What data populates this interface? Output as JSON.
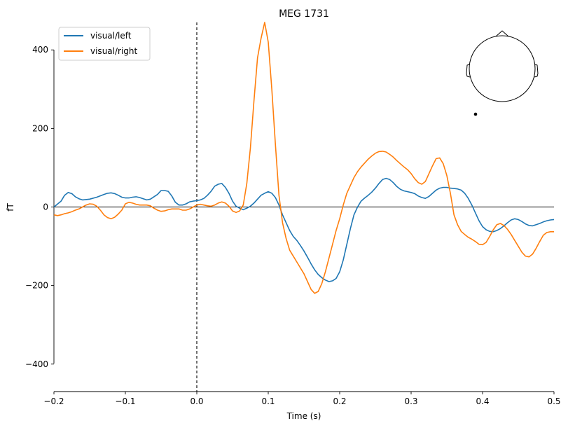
{
  "chart_data": {
    "type": "line",
    "title": "MEG 1731",
    "xlabel": "Time (s)",
    "ylabel": "fT",
    "xlim": [
      -0.2,
      0.5
    ],
    "ylim": [
      -470,
      470
    ],
    "xticks": [
      -0.2,
      -0.1,
      0.0,
      0.1,
      0.2,
      0.3,
      0.4,
      0.5
    ],
    "xtick_labels": [
      "−0.2",
      "−0.1",
      "0.0",
      "0.1",
      "0.2",
      "0.3",
      "0.4",
      "0.5"
    ],
    "yticks": [
      -400,
      -200,
      0,
      200,
      400
    ],
    "ytick_labels": [
      "−400",
      "−200",
      "0",
      "200",
      "400"
    ],
    "grid": false,
    "legend_position": "top-left",
    "stimulus_line_x": 0.0,
    "series": [
      {
        "name": "visual/left",
        "color": "#1f77b4",
        "points": [
          [
            -0.2,
            0
          ],
          [
            -0.19,
            15
          ],
          [
            -0.185,
            30
          ],
          [
            -0.18,
            37
          ],
          [
            -0.175,
            34
          ],
          [
            -0.17,
            26
          ],
          [
            -0.165,
            21
          ],
          [
            -0.16,
            18
          ],
          [
            -0.15,
            20
          ],
          [
            -0.14,
            25
          ],
          [
            -0.13,
            32
          ],
          [
            -0.125,
            35
          ],
          [
            -0.12,
            36
          ],
          [
            -0.115,
            34
          ],
          [
            -0.11,
            30
          ],
          [
            -0.105,
            25
          ],
          [
            -0.1,
            23
          ],
          [
            -0.095,
            23
          ],
          [
            -0.09,
            25
          ],
          [
            -0.085,
            26
          ],
          [
            -0.08,
            24
          ],
          [
            -0.075,
            21
          ],
          [
            -0.07,
            18
          ],
          [
            -0.065,
            20
          ],
          [
            -0.06,
            26
          ],
          [
            -0.055,
            32
          ],
          [
            -0.05,
            42
          ],
          [
            -0.045,
            42
          ],
          [
            -0.04,
            40
          ],
          [
            -0.035,
            28
          ],
          [
            -0.03,
            12
          ],
          [
            -0.025,
            5
          ],
          [
            -0.02,
            5
          ],
          [
            -0.015,
            8
          ],
          [
            -0.01,
            13
          ],
          [
            -0.005,
            15
          ],
          [
            0.0,
            16
          ],
          [
            0.005,
            18
          ],
          [
            0.01,
            22
          ],
          [
            0.015,
            30
          ],
          [
            0.02,
            40
          ],
          [
            0.025,
            53
          ],
          [
            0.03,
            58
          ],
          [
            0.035,
            60
          ],
          [
            0.04,
            50
          ],
          [
            0.045,
            35
          ],
          [
            0.05,
            15
          ],
          [
            0.055,
            2
          ],
          [
            0.06,
            -3
          ],
          [
            0.065,
            -7
          ],
          [
            0.07,
            -3
          ],
          [
            0.075,
            2
          ],
          [
            0.08,
            10
          ],
          [
            0.085,
            20
          ],
          [
            0.09,
            30
          ],
          [
            0.095,
            35
          ],
          [
            0.1,
            39
          ],
          [
            0.105,
            35
          ],
          [
            0.11,
            24
          ],
          [
            0.115,
            5
          ],
          [
            0.12,
            -20
          ],
          [
            0.125,
            -40
          ],
          [
            0.13,
            -60
          ],
          [
            0.135,
            -75
          ],
          [
            0.14,
            -85
          ],
          [
            0.145,
            -98
          ],
          [
            0.15,
            -112
          ],
          [
            0.155,
            -128
          ],
          [
            0.16,
            -145
          ],
          [
            0.165,
            -160
          ],
          [
            0.17,
            -172
          ],
          [
            0.175,
            -180
          ],
          [
            0.18,
            -186
          ],
          [
            0.185,
            -190
          ],
          [
            0.19,
            -188
          ],
          [
            0.195,
            -182
          ],
          [
            0.2,
            -165
          ],
          [
            0.205,
            -135
          ],
          [
            0.21,
            -95
          ],
          [
            0.215,
            -55
          ],
          [
            0.22,
            -20
          ],
          [
            0.225,
            0
          ],
          [
            0.23,
            15
          ],
          [
            0.235,
            23
          ],
          [
            0.24,
            30
          ],
          [
            0.245,
            38
          ],
          [
            0.25,
            48
          ],
          [
            0.255,
            60
          ],
          [
            0.26,
            70
          ],
          [
            0.265,
            73
          ],
          [
            0.27,
            70
          ],
          [
            0.275,
            62
          ],
          [
            0.28,
            52
          ],
          [
            0.285,
            45
          ],
          [
            0.29,
            41
          ],
          [
            0.295,
            39
          ],
          [
            0.3,
            37
          ],
          [
            0.305,
            34
          ],
          [
            0.31,
            28
          ],
          [
            0.315,
            24
          ],
          [
            0.32,
            22
          ],
          [
            0.325,
            27
          ],
          [
            0.33,
            35
          ],
          [
            0.335,
            43
          ],
          [
            0.34,
            48
          ],
          [
            0.345,
            50
          ],
          [
            0.35,
            50
          ],
          [
            0.355,
            48
          ],
          [
            0.36,
            47
          ],
          [
            0.365,
            46
          ],
          [
            0.37,
            43
          ],
          [
            0.375,
            35
          ],
          [
            0.38,
            22
          ],
          [
            0.385,
            5
          ],
          [
            0.39,
            -15
          ],
          [
            0.395,
            -35
          ],
          [
            0.4,
            -50
          ],
          [
            0.405,
            -58
          ],
          [
            0.41,
            -62
          ],
          [
            0.415,
            -63
          ],
          [
            0.42,
            -60
          ],
          [
            0.425,
            -55
          ],
          [
            0.43,
            -48
          ],
          [
            0.435,
            -40
          ],
          [
            0.44,
            -33
          ],
          [
            0.445,
            -30
          ],
          [
            0.45,
            -32
          ],
          [
            0.455,
            -37
          ],
          [
            0.46,
            -43
          ],
          [
            0.465,
            -47
          ],
          [
            0.47,
            -48
          ],
          [
            0.475,
            -45
          ],
          [
            0.48,
            -42
          ],
          [
            0.485,
            -38
          ],
          [
            0.49,
            -35
          ],
          [
            0.495,
            -33
          ],
          [
            0.5,
            -32
          ]
        ]
      },
      {
        "name": "visual/right",
        "color": "#ff7f0e",
        "points": [
          [
            -0.2,
            -20
          ],
          [
            -0.195,
            -22
          ],
          [
            -0.19,
            -20
          ],
          [
            -0.185,
            -17
          ],
          [
            -0.18,
            -15
          ],
          [
            -0.175,
            -12
          ],
          [
            -0.17,
            -8
          ],
          [
            -0.165,
            -5
          ],
          [
            -0.16,
            0
          ],
          [
            -0.155,
            5
          ],
          [
            -0.15,
            8
          ],
          [
            -0.145,
            7
          ],
          [
            -0.14,
            2
          ],
          [
            -0.135,
            -8
          ],
          [
            -0.13,
            -20
          ],
          [
            -0.125,
            -27
          ],
          [
            -0.12,
            -30
          ],
          [
            -0.115,
            -26
          ],
          [
            -0.11,
            -18
          ],
          [
            -0.105,
            -8
          ],
          [
            -0.1,
            8
          ],
          [
            -0.095,
            12
          ],
          [
            -0.09,
            10
          ],
          [
            -0.085,
            7
          ],
          [
            -0.08,
            5
          ],
          [
            -0.075,
            5
          ],
          [
            -0.07,
            5
          ],
          [
            -0.065,
            3
          ],
          [
            -0.06,
            -3
          ],
          [
            -0.055,
            -8
          ],
          [
            -0.05,
            -11
          ],
          [
            -0.045,
            -10
          ],
          [
            -0.04,
            -7
          ],
          [
            -0.035,
            -5
          ],
          [
            -0.03,
            -5
          ],
          [
            -0.025,
            -5
          ],
          [
            -0.02,
            -8
          ],
          [
            -0.015,
            -8
          ],
          [
            -0.01,
            -5
          ],
          [
            -0.005,
            0
          ],
          [
            0.0,
            5
          ],
          [
            0.005,
            7
          ],
          [
            0.01,
            5
          ],
          [
            0.015,
            3
          ],
          [
            0.02,
            2
          ],
          [
            0.025,
            5
          ],
          [
            0.03,
            10
          ],
          [
            0.035,
            13
          ],
          [
            0.04,
            10
          ],
          [
            0.045,
            2
          ],
          [
            0.05,
            -10
          ],
          [
            0.055,
            -14
          ],
          [
            0.06,
            -10
          ],
          [
            0.065,
            5
          ],
          [
            0.07,
            60
          ],
          [
            0.075,
            150
          ],
          [
            0.08,
            270
          ],
          [
            0.085,
            380
          ],
          [
            0.09,
            430
          ],
          [
            0.095,
            470
          ],
          [
            0.1,
            420
          ],
          [
            0.105,
            300
          ],
          [
            0.11,
            160
          ],
          [
            0.115,
            30
          ],
          [
            0.12,
            -40
          ],
          [
            0.125,
            -80
          ],
          [
            0.13,
            -110
          ],
          [
            0.135,
            -125
          ],
          [
            0.14,
            -140
          ],
          [
            0.145,
            -155
          ],
          [
            0.15,
            -170
          ],
          [
            0.155,
            -190
          ],
          [
            0.16,
            -210
          ],
          [
            0.165,
            -220
          ],
          [
            0.17,
            -215
          ],
          [
            0.175,
            -195
          ],
          [
            0.18,
            -165
          ],
          [
            0.185,
            -130
          ],
          [
            0.19,
            -95
          ],
          [
            0.195,
            -60
          ],
          [
            0.2,
            -30
          ],
          [
            0.205,
            5
          ],
          [
            0.21,
            35
          ],
          [
            0.215,
            55
          ],
          [
            0.22,
            75
          ],
          [
            0.225,
            90
          ],
          [
            0.23,
            102
          ],
          [
            0.235,
            112
          ],
          [
            0.24,
            122
          ],
          [
            0.245,
            130
          ],
          [
            0.25,
            137
          ],
          [
            0.255,
            141
          ],
          [
            0.26,
            142
          ],
          [
            0.265,
            140
          ],
          [
            0.27,
            134
          ],
          [
            0.275,
            127
          ],
          [
            0.28,
            118
          ],
          [
            0.285,
            110
          ],
          [
            0.29,
            102
          ],
          [
            0.295,
            95
          ],
          [
            0.3,
            85
          ],
          [
            0.305,
            72
          ],
          [
            0.31,
            62
          ],
          [
            0.315,
            58
          ],
          [
            0.32,
            65
          ],
          [
            0.325,
            85
          ],
          [
            0.33,
            105
          ],
          [
            0.335,
            123
          ],
          [
            0.34,
            125
          ],
          [
            0.345,
            110
          ],
          [
            0.35,
            80
          ],
          [
            0.355,
            35
          ],
          [
            0.36,
            -20
          ],
          [
            0.365,
            -45
          ],
          [
            0.37,
            -62
          ],
          [
            0.375,
            -70
          ],
          [
            0.38,
            -77
          ],
          [
            0.385,
            -82
          ],
          [
            0.39,
            -88
          ],
          [
            0.395,
            -95
          ],
          [
            0.4,
            -96
          ],
          [
            0.405,
            -90
          ],
          [
            0.41,
            -75
          ],
          [
            0.415,
            -58
          ],
          [
            0.42,
            -45
          ],
          [
            0.425,
            -42
          ],
          [
            0.43,
            -47
          ],
          [
            0.435,
            -57
          ],
          [
            0.44,
            -70
          ],
          [
            0.445,
            -85
          ],
          [
            0.45,
            -100
          ],
          [
            0.455,
            -115
          ],
          [
            0.46,
            -125
          ],
          [
            0.465,
            -127
          ],
          [
            0.47,
            -120
          ],
          [
            0.475,
            -105
          ],
          [
            0.48,
            -88
          ],
          [
            0.485,
            -72
          ],
          [
            0.49,
            -65
          ],
          [
            0.495,
            -63
          ],
          [
            0.5,
            -63
          ]
        ]
      }
    ]
  }
}
